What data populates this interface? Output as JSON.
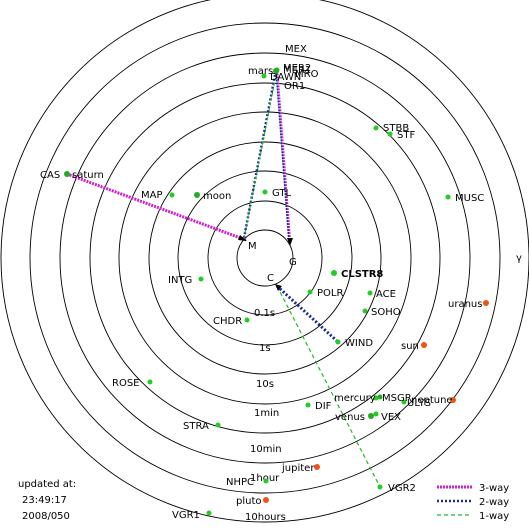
{
  "title": "",
  "axis_symbol": "γ",
  "timestamp": {
    "line1": "updated at:",
    "line2": "23:49:17",
    "line3": "2008/050"
  },
  "ring_labels": [
    "0.1s",
    "1s",
    "10s",
    "1min",
    "10min",
    "1hour",
    "10hours"
  ],
  "legend": [
    {
      "name": "3-way",
      "color": "#cc22cc",
      "style": "dotted"
    },
    {
      "name": "2-way",
      "color": "#1a2a9a",
      "style": "dotted"
    },
    {
      "name": "1-way",
      "color": "#22bb22",
      "style": "dashed"
    }
  ],
  "stations": [
    {
      "name": "M",
      "label": "M"
    },
    {
      "name": "G",
      "label": "G"
    },
    {
      "name": "C",
      "label": "C"
    }
  ],
  "spacecraft": [
    {
      "id": "mex",
      "label": "MEX",
      "kind": "craft"
    },
    {
      "id": "mer2",
      "label": "MER2",
      "kind": "craft"
    },
    {
      "id": "mer1",
      "label": "MER1",
      "kind": "craft"
    },
    {
      "id": "mro",
      "label": "MRO",
      "kind": "craft"
    },
    {
      "id": "mars",
      "label": "mars",
      "kind": "planet"
    },
    {
      "id": "dawn",
      "label": "DAWN",
      "kind": "craft"
    },
    {
      "id": "or1",
      "label": "OR1",
      "kind": "craft"
    },
    {
      "id": "stbb",
      "label": "STBB",
      "kind": "craft"
    },
    {
      "id": "stf",
      "label": "STF",
      "kind": "craft"
    },
    {
      "id": "cas",
      "label": "CAS",
      "kind": "craft"
    },
    {
      "id": "saturn",
      "label": "saturn",
      "kind": "planet"
    },
    {
      "id": "map",
      "label": "MAP",
      "kind": "craft"
    },
    {
      "id": "moon",
      "label": "moon",
      "kind": "planet"
    },
    {
      "id": "gtl",
      "label": "GTL",
      "kind": "craft"
    },
    {
      "id": "musc",
      "label": "MUSC",
      "kind": "craft"
    },
    {
      "id": "clstr",
      "label": "CLSTR8",
      "kind": "craft"
    },
    {
      "id": "intg",
      "label": "INTG",
      "kind": "craft"
    },
    {
      "id": "polr",
      "label": "POLR",
      "kind": "craft"
    },
    {
      "id": "ace",
      "label": "ACE",
      "kind": "craft"
    },
    {
      "id": "uranus",
      "label": "uranus",
      "kind": "planet"
    },
    {
      "id": "chdr",
      "label": "CHDR",
      "kind": "craft"
    },
    {
      "id": "soho",
      "label": "SOHO",
      "kind": "craft"
    },
    {
      "id": "wind",
      "label": "WIND",
      "kind": "craft"
    },
    {
      "id": "sun",
      "label": "sun",
      "kind": "star"
    },
    {
      "id": "rose",
      "label": "ROSE",
      "kind": "craft"
    },
    {
      "id": "mercury",
      "label": "mercury",
      "kind": "planet"
    },
    {
      "id": "msgr",
      "label": "MSGR",
      "kind": "craft"
    },
    {
      "id": "neptune",
      "label": "neptune",
      "kind": "planet"
    },
    {
      "id": "ulys",
      "label": "ULYS",
      "kind": "craft"
    },
    {
      "id": "dif",
      "label": "DIF",
      "kind": "craft"
    },
    {
      "id": "venus",
      "label": "venus",
      "kind": "planet"
    },
    {
      "id": "vex",
      "label": "VEX",
      "kind": "craft"
    },
    {
      "id": "stra",
      "label": "STRA",
      "kind": "craft"
    },
    {
      "id": "jupiter",
      "label": "jupiter",
      "kind": "planet"
    },
    {
      "id": "nhpc",
      "label": "NHPC",
      "kind": "craft"
    },
    {
      "id": "vgr2",
      "label": "VGR2",
      "kind": "craft"
    },
    {
      "id": "pluto",
      "label": "pluto",
      "kind": "planet"
    },
    {
      "id": "vgr1",
      "label": "VGR1",
      "kind": "craft"
    }
  ],
  "links": [
    {
      "from": "M",
      "to": "cas",
      "type": "3-way"
    },
    {
      "from": "G",
      "to": "mer",
      "type": "3-way"
    },
    {
      "from": "M",
      "to": "mer",
      "type": "2-way"
    },
    {
      "from": "C",
      "to": "wind",
      "type": "2-way"
    },
    {
      "from": "C",
      "to": "vgr2",
      "type": "1-way"
    }
  ],
  "colors": {
    "craft": "#22cc22",
    "planet": "#22aa22",
    "star": "#ee5511",
    "outer_planet": "#ee5511"
  }
}
